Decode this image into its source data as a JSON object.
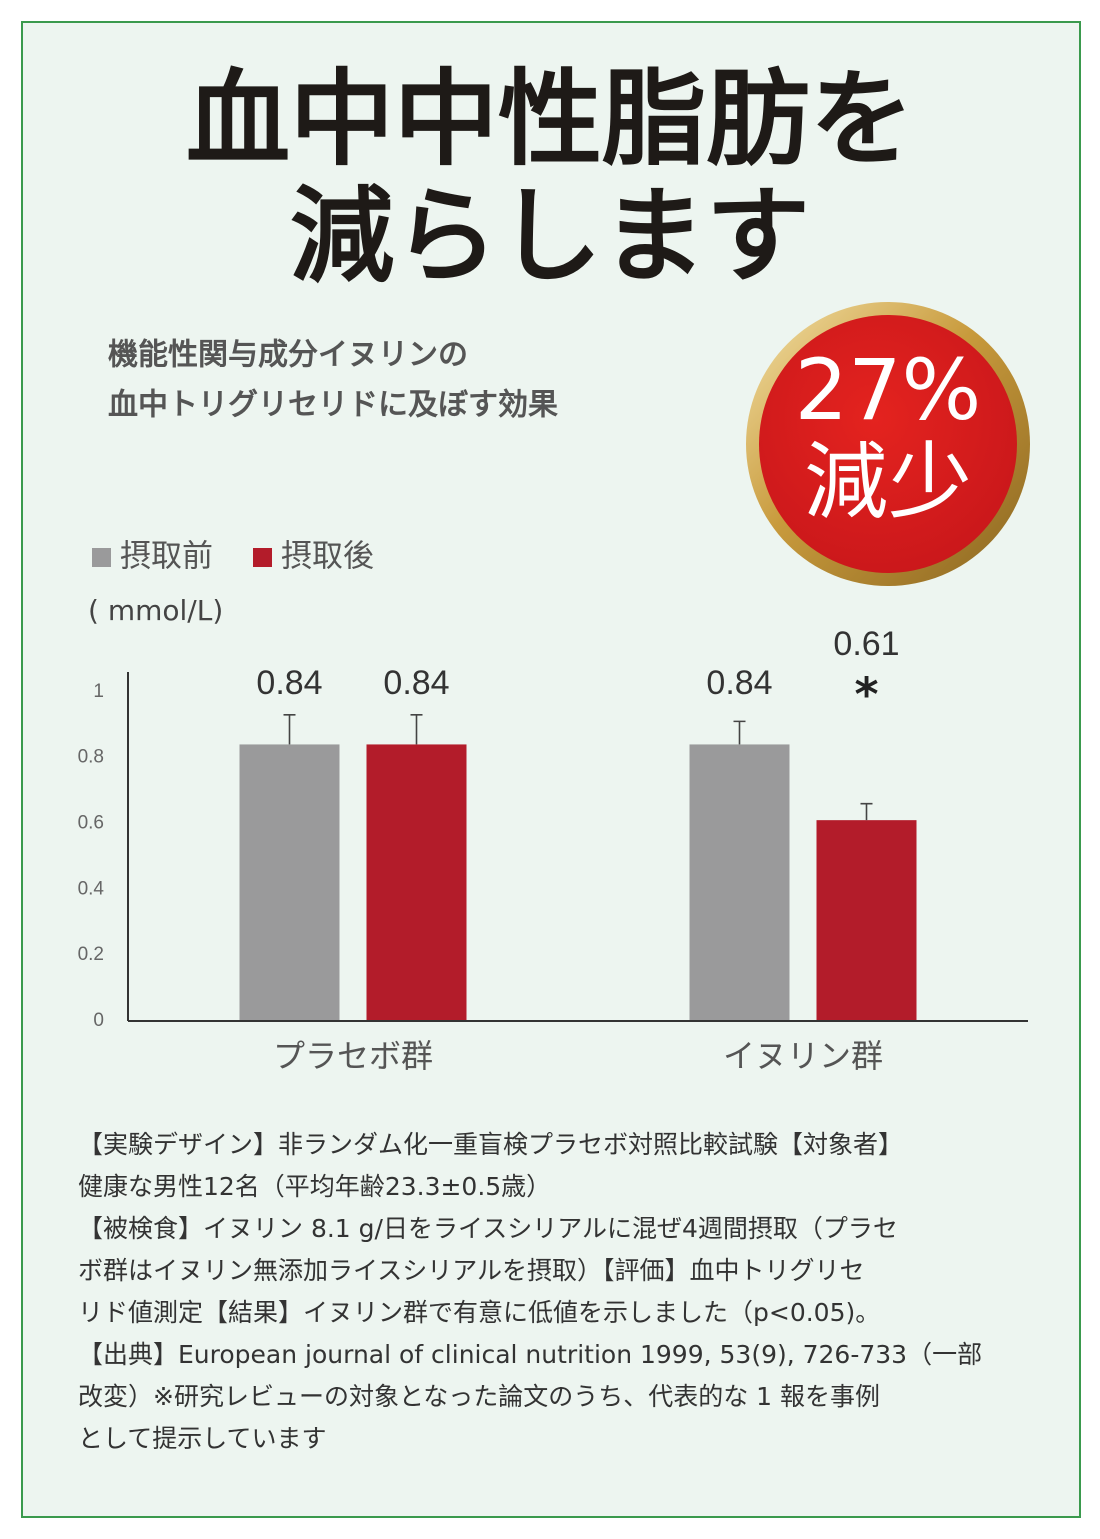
{
  "header": {
    "title_lines": [
      "血中中性脂肪を",
      "減らします"
    ],
    "subtitle_lines": [
      "機能性関与成分イヌリンの",
      "血中トリグリセリドに及ぼす効果"
    ],
    "badge_lines": [
      "27%",
      "減少"
    ]
  },
  "chart_data": {
    "type": "bar",
    "y_label": "( mmol/L)",
    "categories": [
      "プラセボ群",
      "イヌリン群"
    ],
    "series": [
      {
        "name": "摂取前",
        "color": "#9a9a9b",
        "values": [
          0.84,
          0.84
        ],
        "errors": [
          0.09,
          0.07
        ]
      },
      {
        "name": "摂取後",
        "color": "#b31c2a",
        "values": [
          0.84,
          0.61
        ],
        "errors": [
          0.09,
          0.05
        ]
      }
    ],
    "significance": {
      "series": 1,
      "index": 1,
      "text": "*"
    },
    "ylim": [
      0,
      1.06
    ],
    "yticks": [
      0,
      0.2,
      0.4,
      0.6,
      0.8,
      1
    ]
  },
  "footnote_lines": [
    "【実験デザイン】非ランダム化一重盲検プラセボ対照比較試験【対象者】",
    "健康な男性12名（平均年齢23.3±0.5歳）",
    "【被検食】イヌリン 8.1 g/日をライスシリアルに混ぜ4週間摂取（プラセ",
    "ボ群はイヌリン無添加ライスシリアルを摂取）【評価】血中トリグリセ",
    "リド値測定【結果】イヌリン群で有意に低値を示しました（p<0.05)。",
    "【出典】European journal of clinical nutrition 1999, 53(9), 726-733（一部",
    "改変）※研究レビューの対象となった論文のうち、代表的な 1 報を事例",
    "として提示しています"
  ]
}
